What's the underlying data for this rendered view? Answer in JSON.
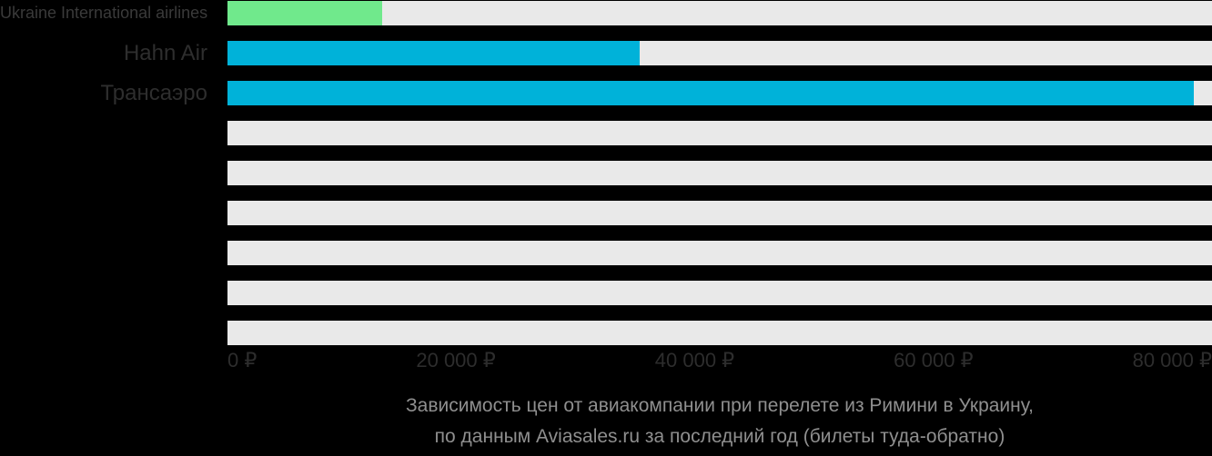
{
  "colors": {
    "background": "#000000",
    "track": "#e9e9e9",
    "green_bar": "#70e98c",
    "cyan_bar": "#00b2d9",
    "label_text": "#2e2e2e",
    "axis_text": "#2d2d2d",
    "caption_text": "#8f8f8f"
  },
  "chart_data": {
    "type": "bar",
    "orientation": "horizontal",
    "title": "Зависимость цен от авиакомпании при перелете из Римини в Украину, по данным Aviasales.ru за последний год (билеты туда-обратно)",
    "categories": [
      "Ukraine International airlines",
      "Hahn Air",
      "Трансаэро",
      "",
      "",
      "",
      "",
      "",
      ""
    ],
    "values": [
      12600,
      33500,
      78500,
      null,
      null,
      null,
      null,
      null,
      null
    ],
    "bar_colors": [
      "#70e98c",
      "#00b2d9",
      "#00b2d9",
      null,
      null,
      null,
      null,
      null,
      null
    ],
    "unit": "₽",
    "xlim": [
      0,
      80000
    ],
    "x_ticks": [
      "0 ₽",
      "20 000 ₽",
      "40 000 ₽",
      "60 000 ₽",
      "80 000 ₽"
    ],
    "grid": false,
    "legend": false,
    "track_color": "#e9e9e9"
  },
  "caption": {
    "line1": "Зависимость цен от авиакомпании при перелете из Римини в Украину,",
    "line2": "по данным Aviasales.ru за последний год (билеты туда-обратно)"
  }
}
